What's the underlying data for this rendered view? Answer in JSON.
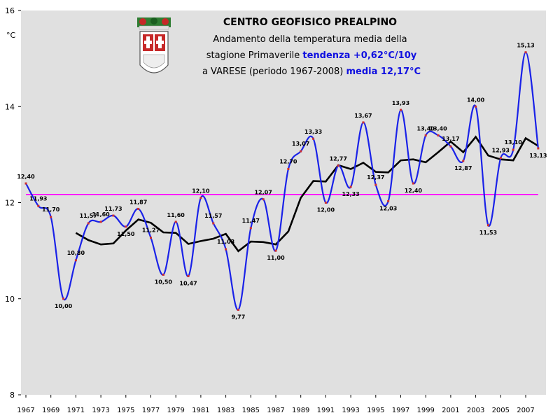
{
  "header": {
    "line1": "CENTRO GEOFISICO PREALPINO",
    "line2": "Andamento della temperatura media della",
    "line3_text": "stagione Primaverile ",
    "line3_highlight": "tendenza +0,62°C/10y",
    "line4_text": "a VARESE (periodo 1967-2008) ",
    "line4_highlight": "media 12,17°C"
  },
  "colors": {
    "plot_bg": "#e0e0e0",
    "series": "#1a22e8",
    "mean_line": "#ff00ff",
    "moving_avg": "#000000",
    "marker": "#d03030"
  },
  "chart_data": {
    "type": "line",
    "ylabel": "°C",
    "ylim": [
      8,
      16
    ],
    "yticks": [
      "8",
      "10",
      "12",
      "14",
      "16"
    ],
    "xlim": [
      1967,
      2008.5
    ],
    "xticks": [
      "1967",
      "1969",
      "1971",
      "1973",
      "1975",
      "1977",
      "1979",
      "1981",
      "1983",
      "1985",
      "1987",
      "1989",
      "1991",
      "1993",
      "1995",
      "1997",
      "1999",
      "2001",
      "2003",
      "2005",
      "2007"
    ],
    "mean": 12.17,
    "series": [
      {
        "x": [
          1967,
          1968,
          1969,
          1970,
          1971,
          1972,
          1973,
          1974,
          1975,
          1976,
          1977,
          1978,
          1979,
          1980,
          1981,
          1982,
          1983,
          1984,
          1985,
          1986,
          1987,
          1988,
          1989,
          1990,
          1991,
          1992,
          1993,
          1994,
          1995,
          1996,
          1997,
          1998,
          1999,
          2000,
          2001,
          2002,
          2003,
          2004,
          2005,
          2006,
          2007,
          2008
        ],
        "values": [
          12.4,
          11.93,
          11.7,
          10.0,
          10.8,
          11.57,
          11.6,
          11.73,
          11.5,
          11.87,
          11.27,
          10.5,
          11.6,
          10.47,
          12.1,
          11.57,
          11.03,
          9.77,
          11.47,
          12.07,
          11.0,
          12.7,
          13.07,
          13.33,
          12.0,
          12.77,
          12.33,
          13.67,
          12.37,
          12.03,
          13.93,
          12.4,
          13.4,
          13.4,
          13.17,
          12.87,
          14.0,
          11.53,
          12.93,
          13.1,
          15.13,
          13.13
        ],
        "labels": [
          "12,40",
          "11,93",
          "11,70",
          "10,00",
          "10,80",
          "11,57",
          "11,60",
          "11,73",
          "11,50",
          "11,87",
          "11,27",
          "10,50",
          "11,60",
          "10,47",
          "12,10",
          "11,57",
          "11,03",
          "9,77",
          "11,47",
          "12,07",
          "11,00",
          "12,70",
          "13,07",
          "13,33",
          "12,00",
          "12,77",
          "12,33",
          "13,67",
          "12,37",
          "12,03",
          "13,93",
          "12,40",
          "13,40",
          "13,40",
          "13,17",
          "12,87",
          "14,00",
          "11,53",
          "12,93",
          "13,10",
          "15,13",
          "13,13"
        ]
      },
      {
        "x": [
          1971,
          1972,
          1973,
          1974,
          1975,
          1976,
          1977,
          1978,
          1979,
          1980,
          1981,
          1982,
          1983,
          1984,
          1985,
          1986,
          1987,
          1988,
          1989,
          1990,
          1991,
          1992,
          1993,
          1994,
          1995,
          1996,
          1997,
          1998,
          1999,
          2000,
          2001,
          2002,
          2003,
          2004,
          2005,
          2006,
          2007,
          2008
        ],
        "values": [
          11.37,
          11.22,
          11.13,
          11.15,
          11.42,
          11.65,
          11.58,
          11.38,
          11.37,
          11.14,
          11.2,
          11.25,
          11.35,
          10.99,
          11.19,
          11.18,
          11.13,
          11.4,
          12.1,
          12.45,
          12.44,
          12.78,
          12.7,
          12.83,
          12.64,
          12.63,
          12.88,
          12.9,
          12.84,
          13.05,
          13.27,
          13.05,
          13.37,
          12.98,
          12.9,
          12.88,
          13.34,
          13.18
        ]
      }
    ]
  }
}
